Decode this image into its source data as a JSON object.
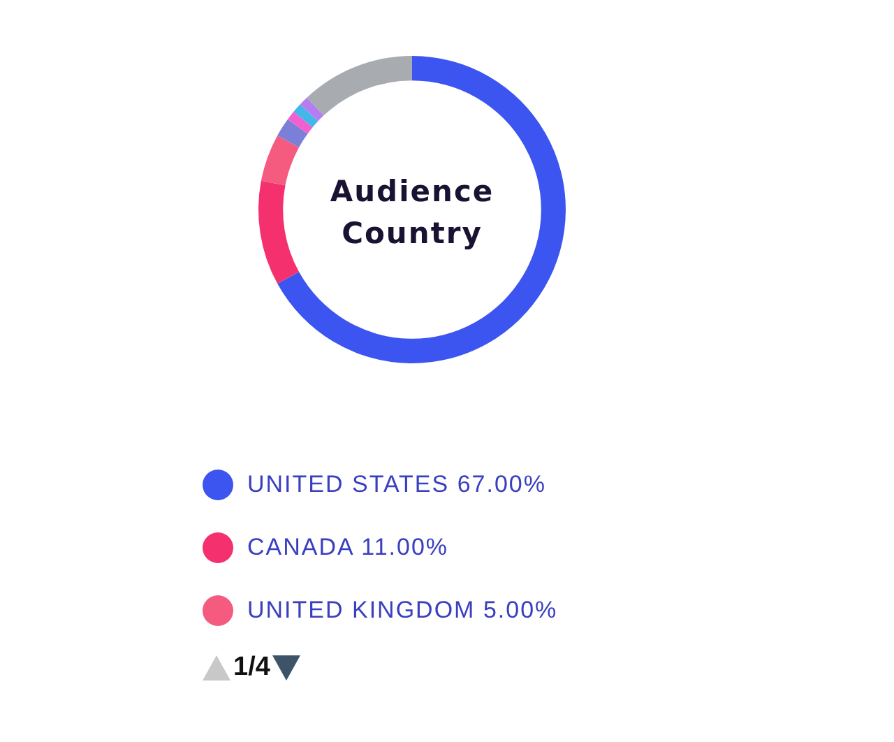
{
  "chart_data": {
    "type": "donut",
    "title": "Audience Country",
    "categories": [
      "UNITED STATES",
      "CANADA",
      "UNITED KINGDOM",
      null,
      null,
      null,
      null,
      null
    ],
    "values": [
      67,
      11,
      5,
      2,
      1,
      1,
      1,
      12
    ],
    "value_labels": [
      "67.00%",
      "11.00%",
      "5.00%",
      null,
      null,
      null,
      null,
      null
    ],
    "colors": [
      "#3d55f0",
      "#f5306f",
      "#f55a7f",
      "#7b7fd8",
      "#f060d0",
      "#40b8e8",
      "#b47ef0",
      "#a8abb0"
    ],
    "legend": "bottom",
    "annotations": [
      "1/4"
    ]
  }
}
